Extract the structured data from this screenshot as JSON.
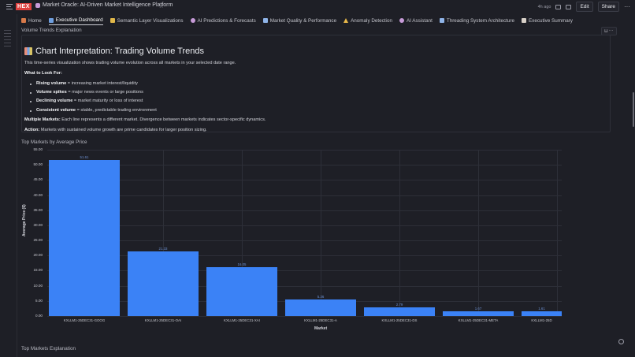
{
  "app": {
    "logo": "HEX",
    "title": "Market Oracle: AI-Driven Market Intelligence Platform",
    "last_edited": "4h ago",
    "edit_label": "Edit",
    "share_label": "Share",
    "more": "···"
  },
  "tabs": [
    {
      "label": "Home",
      "icon": "house-emoji",
      "color": "#d87a4a",
      "active": false
    },
    {
      "label": "Executive Dashboard",
      "icon": "chart-emoji",
      "color": "#6f9fe0",
      "active": true
    },
    {
      "label": "Semantic Layer Visualizations",
      "icon": "folder-emoji",
      "color": "#e1b84a",
      "active": false
    },
    {
      "label": "AI Predictions & Forecasts",
      "icon": "robot-emoji",
      "color": "#c79bd8",
      "active": false
    },
    {
      "label": "Market Quality & Performance",
      "icon": "chart-emoji",
      "color": "#8fb4e8",
      "active": false
    },
    {
      "label": "Anomaly Detection",
      "icon": "warning-emoji",
      "color": "#e8b84a",
      "active": false
    },
    {
      "label": "AI Assistant",
      "icon": "robot-emoji",
      "color": "#c79bd8",
      "active": false
    },
    {
      "label": "Threading System Architecture",
      "icon": "gear-emoji",
      "color": "#8fb4e8",
      "active": false
    },
    {
      "label": "Executive Summary",
      "icon": "document-emoji",
      "color": "#d8d0c8",
      "active": false
    }
  ],
  "cells": {
    "volume_label": "Volume Trends Explanation",
    "top_markets_label": "Top Markets Explanation"
  },
  "markdown": {
    "title": "Chart Interpretation: Trading Volume Trends",
    "intro": "This time-series visualization shows trading volume evolution across all markets in your selected date range.",
    "look_for_heading": "What to Look For:",
    "bullets": [
      {
        "bold": "Rising volume",
        "text": " = increasing market interest/liquidity"
      },
      {
        "bold": "Volume spikes",
        "text": " = major news events or large positions"
      },
      {
        "bold": "Declining volume",
        "text": " = market maturity or loss of interest"
      },
      {
        "bold": "Consistent volume",
        "text": " = stable, predictable trading environment"
      }
    ],
    "multiple_bold": "Multiple Markets:",
    "multiple_text": " Each line represents a different market. Divergence between markets indicates sector-specific dynamics.",
    "action_bold": "Action:",
    "action_text": " Markets with sustained volume growth are prime candidates for larger position sizing."
  },
  "chart_data": {
    "type": "bar",
    "title": "Top Markets by Average Price",
    "xlabel": "Market",
    "ylabel": "Average Price ($)",
    "ylim": [
      0,
      55
    ],
    "yticks": [
      "0.00",
      "5.00",
      "10.00",
      "15.00",
      "20.00",
      "25.00",
      "30.00",
      "35.00",
      "40.00",
      "45.00",
      "50.00",
      "55.00"
    ],
    "categories": [
      "KXLLM1-25DEC31-GOOG",
      "KXLLM1-25DEC31-OAI",
      "KXLLM1-25DEC31-XAI",
      "KXLLM1-25DEC31-A",
      "KXLLM1-25DEC31-DS",
      "KXLLM1-25DEC31-META",
      "KXLLM1-25D"
    ],
    "values": [
      51.61,
      21.33,
      16.05,
      5.36,
      2.79,
      1.67,
      1.61
    ],
    "value_labels": [
      "51.61",
      "21.33",
      "16.05",
      "5.36",
      "2.79",
      "1.67",
      "1.61"
    ],
    "color": "#3b82f6",
    "grid": true,
    "legend": "none"
  }
}
